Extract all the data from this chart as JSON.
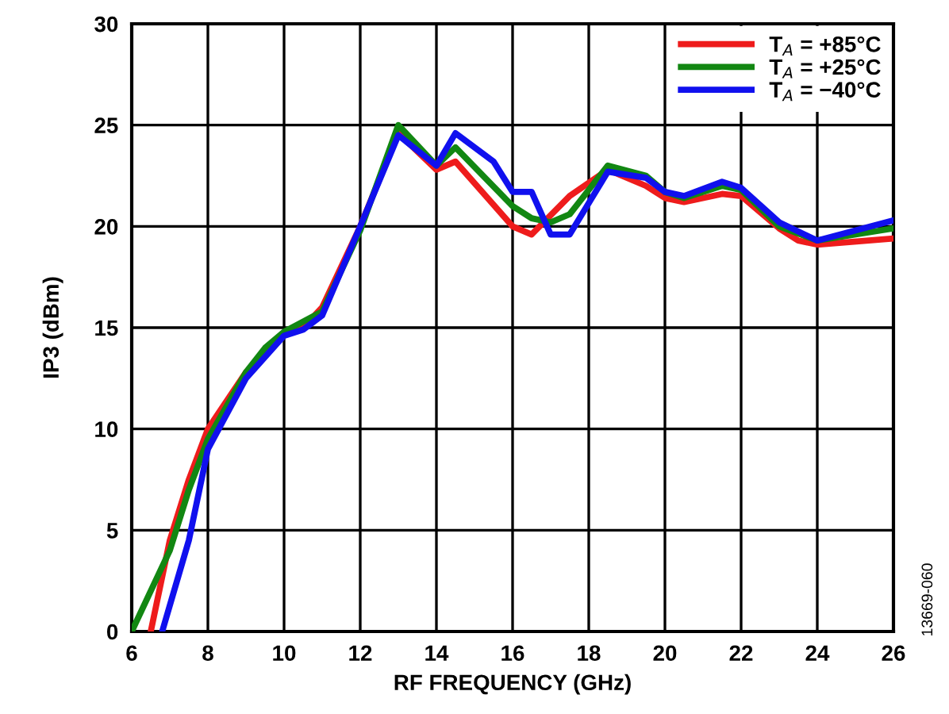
{
  "chart_data": {
    "type": "line",
    "xlabel": "RF FREQUENCY (GHz)",
    "ylabel": "IP3 (dBm)",
    "xlim": [
      6,
      26
    ],
    "xticks": [
      6,
      8,
      10,
      12,
      14,
      16,
      18,
      20,
      22,
      24,
      26
    ],
    "ylim": [
      0,
      30
    ],
    "yticks": [
      0,
      5,
      10,
      15,
      20,
      25,
      30
    ],
    "grid": true,
    "legend": "top right",
    "marker": "none",
    "line_style": "solid",
    "annotations": [
      "13669-060"
    ],
    "series": [
      {
        "name": "T$_{A}$ = +85°C",
        "color": "#ee1c1c",
        "x": [
          6.5,
          7,
          7.5,
          8,
          9,
          10,
          10.5,
          11,
          12,
          13,
          14,
          14.5,
          16,
          16.5,
          17.5,
          18.5,
          19.5,
          20,
          20.5,
          21.5,
          22,
          23,
          23.5,
          24,
          26
        ],
        "values": [
          0,
          4.5,
          7.5,
          10,
          12.8,
          14.7,
          15,
          16,
          20,
          24.6,
          22.8,
          23.2,
          20,
          19.6,
          21.5,
          22.8,
          22,
          21.4,
          21.2,
          21.6,
          21.5,
          19.9,
          19.3,
          19.1,
          19.4
        ]
      },
      {
        "name": "T$_{A}$ = +25°C",
        "color": "#128712",
        "x": [
          6,
          6.5,
          7,
          7.5,
          8,
          9,
          9.5,
          10,
          11,
          12,
          13,
          14,
          14.5,
          16,
          16.5,
          17,
          17.5,
          18.5,
          19.5,
          20,
          20.5,
          21.5,
          22,
          23,
          24,
          26
        ],
        "values": [
          0,
          2,
          4,
          7,
          9.5,
          12.8,
          14,
          14.8,
          15.8,
          19.8,
          25,
          23,
          23.9,
          21,
          20.4,
          20.2,
          20.6,
          23,
          22.5,
          21.7,
          21.4,
          22,
          21.8,
          20,
          19.3,
          19.9
        ]
      },
      {
        "name": "T$_{A}$ = −40°C",
        "color": "#1010ee",
        "x": [
          6.8,
          7.5,
          8,
          9,
          10,
          10.5,
          11,
          12,
          13,
          14,
          14.5,
          15.5,
          16,
          16.5,
          17,
          17.5,
          18.5,
          19.5,
          20,
          20.5,
          21.5,
          22,
          23,
          24,
          26
        ],
        "values": [
          0,
          4.5,
          9,
          12.5,
          14.6,
          14.9,
          15.6,
          20,
          24.5,
          23,
          24.6,
          23.2,
          21.7,
          21.7,
          19.6,
          19.6,
          22.7,
          22.4,
          21.7,
          21.5,
          22.2,
          21.9,
          20.2,
          19.3,
          20.3
        ]
      }
    ]
  }
}
